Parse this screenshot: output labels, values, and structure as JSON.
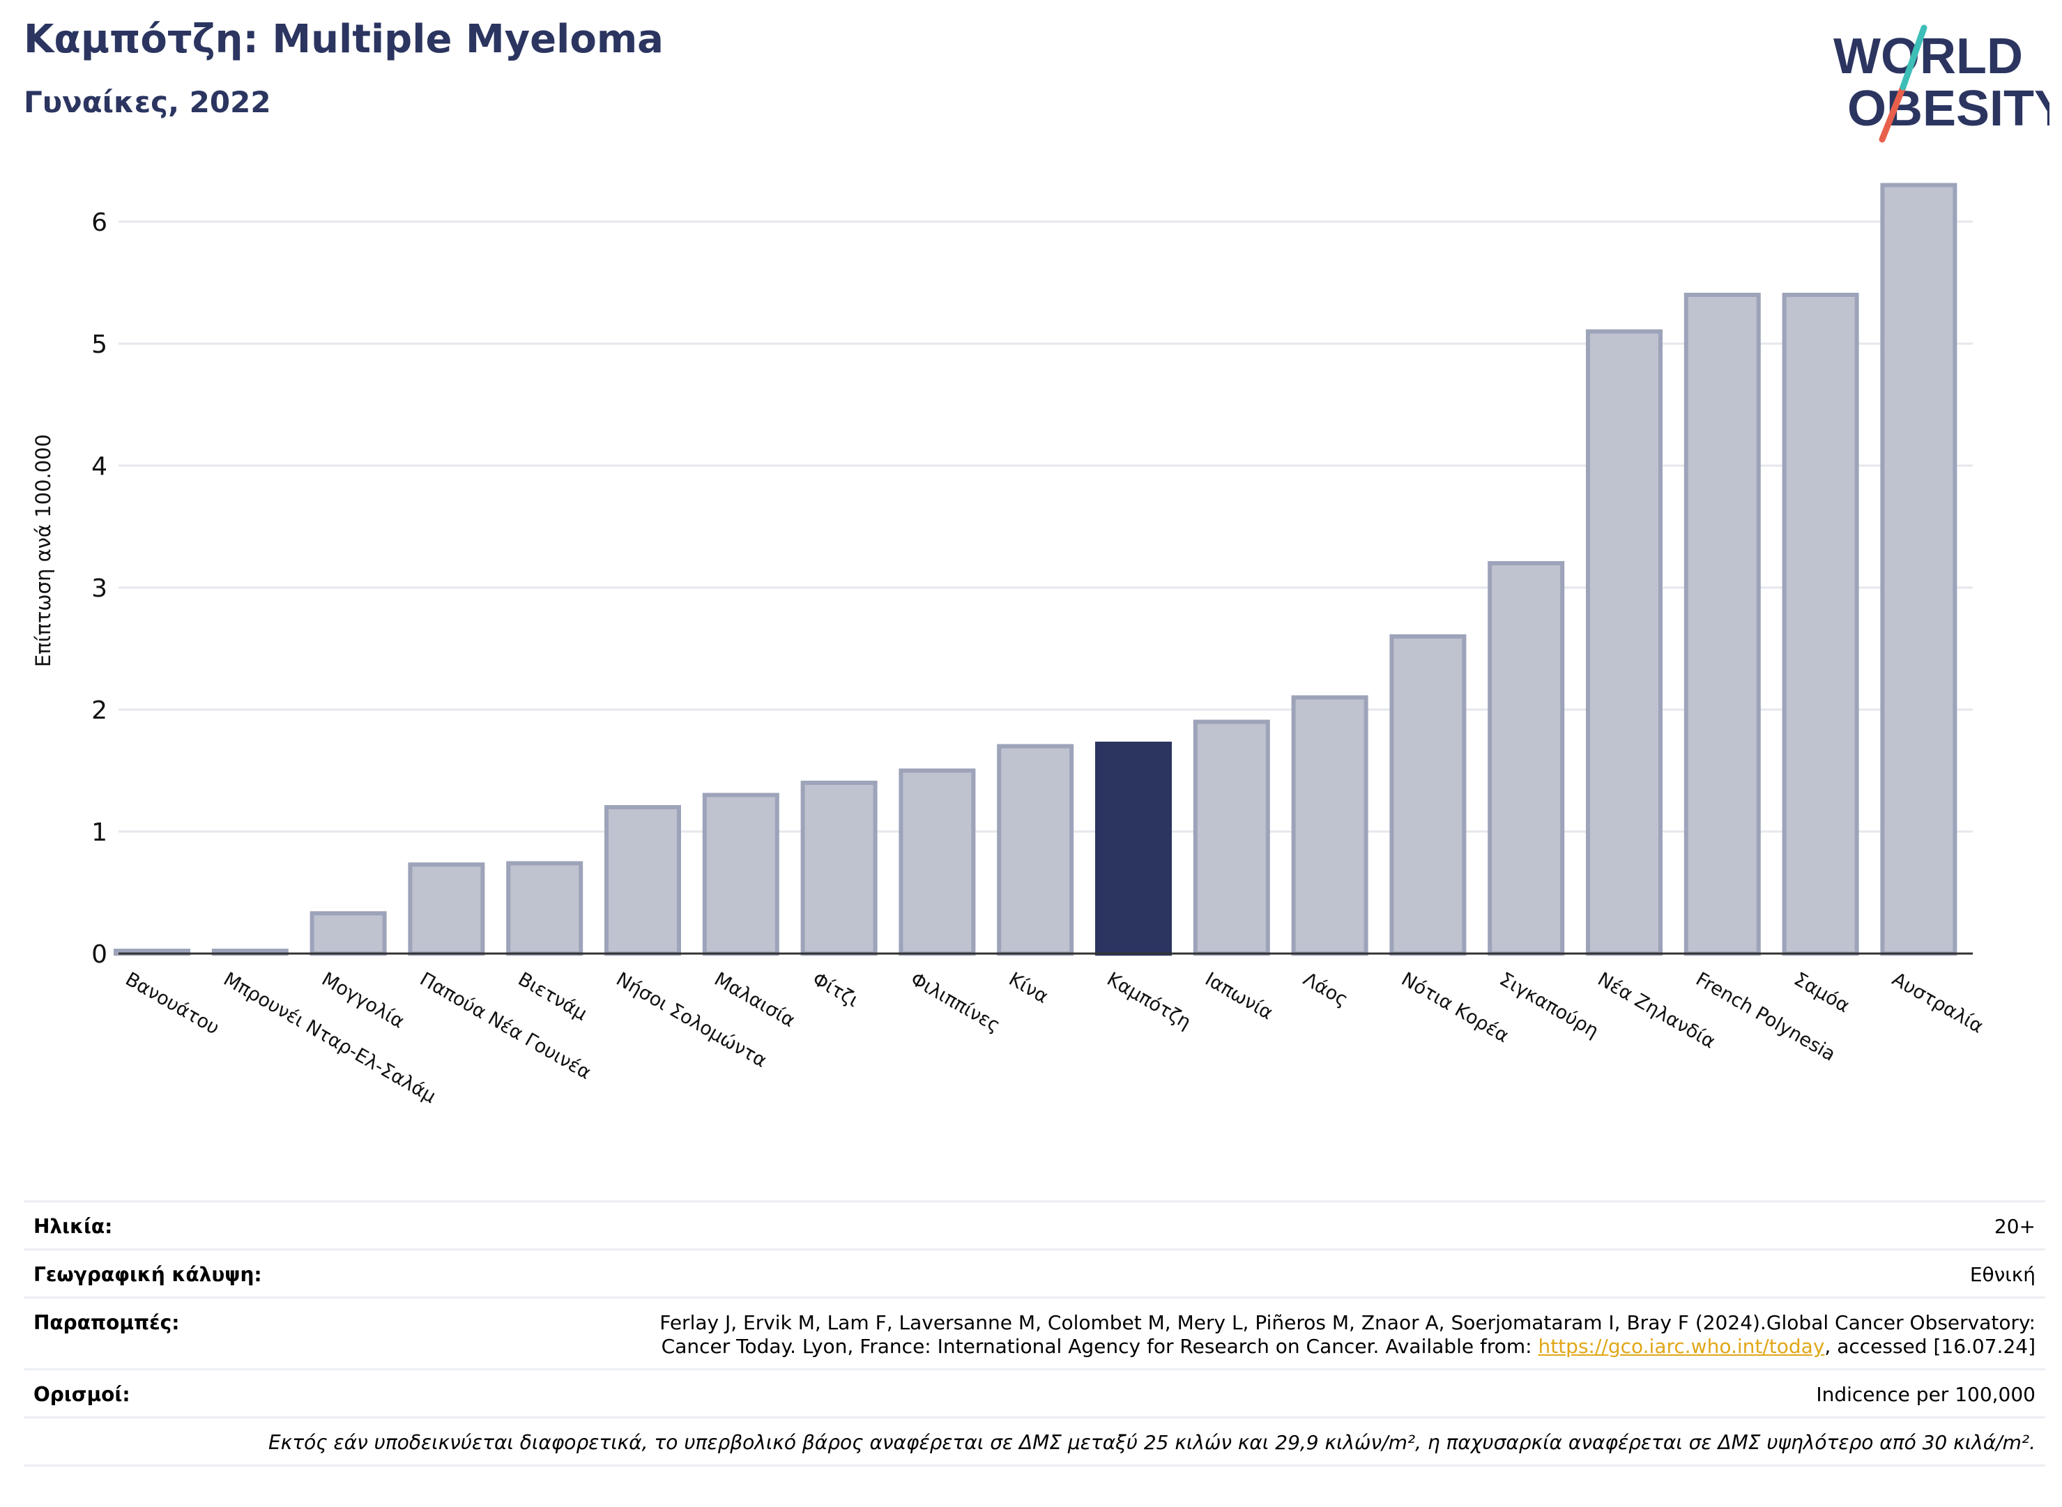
{
  "header": {
    "title": "Καμπότζη: Multiple Myeloma",
    "subtitle": "Γυναίκες, 2022",
    "logo_text_1": "WORLD",
    "logo_text_2": "OBESITY"
  },
  "colors": {
    "highlight": "#2b3560",
    "bar": "#bfc2cf",
    "bar_border": "#9da3b9",
    "title": "#2b3560",
    "link": "#e0a718"
  },
  "chart_data": {
    "type": "bar",
    "title": "Καμπότζη: Multiple Myeloma",
    "subtitle": "Γυναίκες, 2022",
    "ylabel": "Επίπτωση ανά 100.000",
    "xlabel": "",
    "ylim": [
      0,
      6.5
    ],
    "yticks": [
      0,
      1,
      2,
      3,
      4,
      5,
      6
    ],
    "grid": true,
    "highlight": "Καμπότζη",
    "categories": [
      "Βανουάτου",
      "Μπρουνέι Νταρ-Ελ-Σαλάμ",
      "Μογγολία",
      "Παπούα Νέα Γουινέα",
      "Βιετνάμ",
      "Νήσοι Σολομώντα",
      "Μαλαισία",
      "Φίτζι",
      "Φιλιππίνες",
      "Κίνα",
      "Καμπότζη",
      "Ιαπωνία",
      "Λάος",
      "Νότια Κορέα",
      "Σιγκαπούρη",
      "Νέα Ζηλανδία",
      "French Polynesia",
      "Σαμόα",
      "Αυστραλία"
    ],
    "values": [
      0.02,
      0.02,
      0.33,
      0.73,
      0.74,
      1.2,
      1.3,
      1.4,
      1.5,
      1.7,
      1.72,
      1.9,
      2.1,
      2.6,
      3.2,
      5.1,
      5.4,
      5.4,
      6.3
    ]
  },
  "info": {
    "age_label": "Ηλικία:",
    "age_value": "20+",
    "coverage_label": "Γεωγραφική κάλυψη:",
    "coverage_value": "Εθνική",
    "refs_label": "Παραπομπές:",
    "refs_line1": "Ferlay J, Ervik M, Lam F, Laversanne M, Colombet M, Mery L, Piñeros M, Znaor A, Soerjomataram I, Bray F (2024).Global Cancer Observatory:",
    "refs_line2_pre": "Cancer Today. Lyon, France: International Agency for Research on Cancer. Available from: ",
    "refs_link": "https://gco.iarc.who.int/today",
    "refs_line2_post": ", accessed [16.07.24]",
    "defs_label": "Ορισμοί:",
    "defs_value": "Indicence per 100,000",
    "footnote": "Εκτός εάν υποδεικνύεται διαφορετικά, το υπερβολικό βάρος αναφέρεται σε ΔΜΣ μεταξύ 25 κιλών και 29,9 κιλών/m², η παχυσαρκία αναφέρεται σε ΔΜΣ υψηλότερο από 30 κιλά/m²."
  }
}
